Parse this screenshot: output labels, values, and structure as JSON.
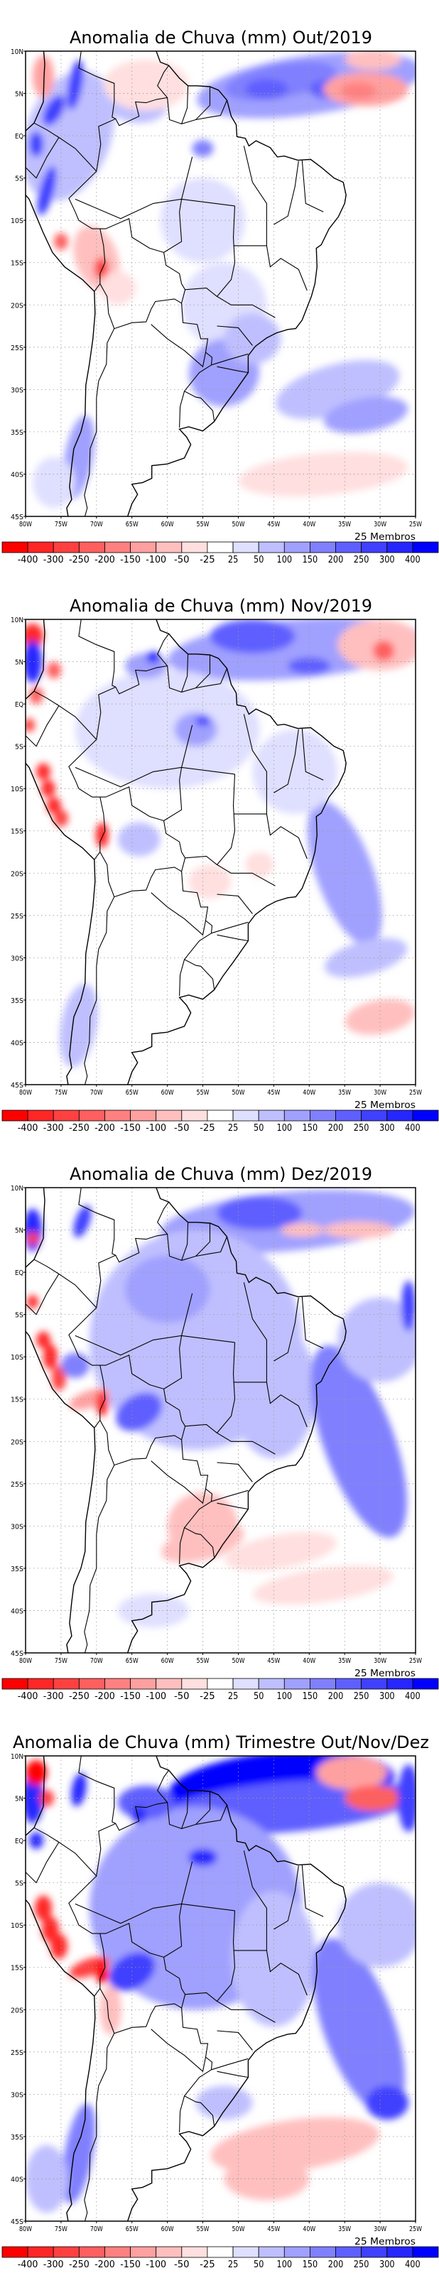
{
  "panels": [
    {
      "title": "Anomalia de Chuva (mm) Out/2019"
    },
    {
      "title": "Anomalia de Chuva (mm) Nov/2019"
    },
    {
      "title": "Anomalia de Chuva (mm) Dez/2019"
    },
    {
      "title": "Anomalia de Chuva (mm) Trimestre Out/Nov/Dez"
    }
  ],
  "axes": {
    "lon_labels": [
      "80W",
      "75W",
      "70W",
      "65W",
      "60W",
      "55W",
      "50W",
      "45W",
      "40W",
      "35W",
      "30W",
      "25W"
    ],
    "lat_labels": [
      "10N",
      "5N",
      "EQ",
      "5S",
      "10S",
      "15S",
      "20S",
      "25S",
      "30S",
      "35S",
      "40S",
      "45S"
    ]
  },
  "members_label": "25 Membros",
  "colorbar": {
    "labels": [
      "-400",
      "-300",
      "-250",
      "-200",
      "-150",
      "-100",
      "-50",
      "-25",
      "25",
      "50",
      "100",
      "150",
      "200",
      "250",
      "300",
      "400"
    ],
    "colors": [
      "#ff0000",
      "#ff2626",
      "#ff4040",
      "#ff5f5f",
      "#ff8080",
      "#ffa0a0",
      "#ffbfbf",
      "#ffdfdf",
      "#ffffff",
      "#dfdfff",
      "#bfbfff",
      "#a0a0ff",
      "#8080ff",
      "#5f5fff",
      "#4040ff",
      "#2626ff",
      "#0000ff"
    ]
  }
}
